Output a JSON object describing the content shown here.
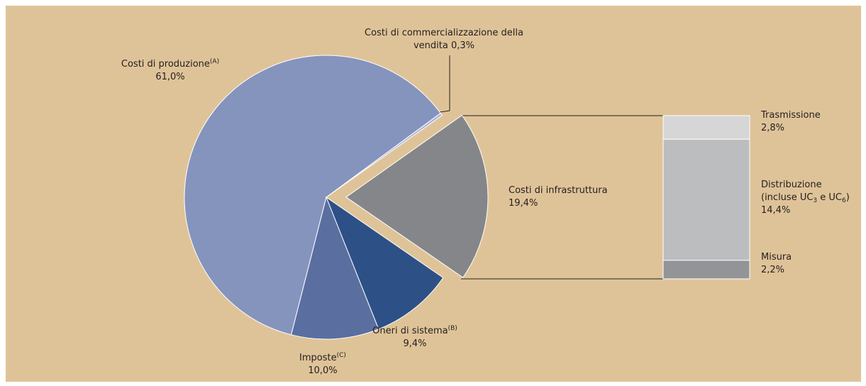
{
  "chart_data": [
    {
      "type": "pie",
      "categories": [
        "Costi di produzione",
        "Costi di commercializzazione della vendita",
        "Costi di infrastruttura",
        "Oneri di sistema",
        "Imposte"
      ],
      "notes": [
        "(A)",
        null,
        null,
        "(B)",
        "(C)"
      ],
      "values": [
        61.0,
        0.3,
        19.4,
        9.4,
        10.0
      ],
      "value_labels": [
        "61,0%",
        "0,3%",
        "19,4%",
        "9,4%",
        "10,0%"
      ],
      "colors": [
        "#8594bd",
        "#aab5d8",
        "#858689",
        "#2d5087",
        "#5a6fa0"
      ]
    },
    {
      "type": "stacked-bar",
      "categories": [
        "Trasmissione",
        "Distribuzione",
        "Misura"
      ],
      "details": [
        null,
        [
          "(incluse UC",
          "3",
          " e UC",
          "6",
          ")"
        ],
        null
      ],
      "values": [
        2.8,
        14.4,
        2.2
      ],
      "value_labels": [
        "2,8%",
        "14,4%",
        "2,2%"
      ],
      "colors": [
        "#d6d6d6",
        "#bcbdbf",
        "#939497"
      ]
    }
  ]
}
